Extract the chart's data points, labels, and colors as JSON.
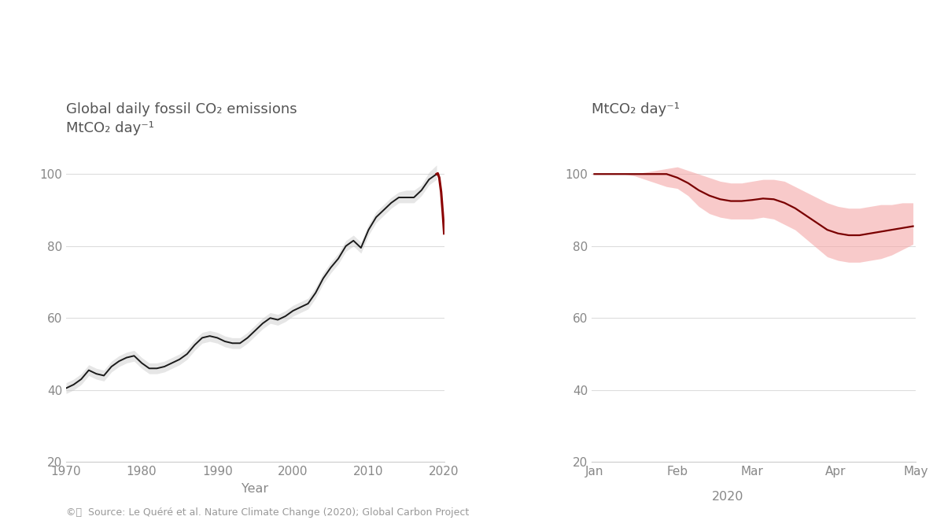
{
  "left_panel": {
    "title_line1": "Global daily fossil CO₂ emissions",
    "title_line2": "MtCO₂ day⁻¹",
    "xlabel": "Year",
    "ylim": [
      20,
      110
    ],
    "yticks": [
      20,
      40,
      60,
      80,
      100
    ],
    "xlim": [
      1970,
      2020
    ],
    "xticks": [
      1970,
      1980,
      1990,
      2000,
      2010,
      2020
    ],
    "years": [
      1970,
      1971,
      1972,
      1973,
      1974,
      1975,
      1976,
      1977,
      1978,
      1979,
      1980,
      1981,
      1982,
      1983,
      1984,
      1985,
      1986,
      1987,
      1988,
      1989,
      1990,
      1991,
      1992,
      1993,
      1994,
      1995,
      1996,
      1997,
      1998,
      1999,
      2000,
      2001,
      2002,
      2003,
      2004,
      2005,
      2006,
      2007,
      2008,
      2009,
      2010,
      2011,
      2012,
      2013,
      2014,
      2015,
      2016,
      2017,
      2018,
      2019
    ],
    "values": [
      40.5,
      41.5,
      43.0,
      45.5,
      44.5,
      44.0,
      46.5,
      48.0,
      49.0,
      49.5,
      47.5,
      46.0,
      46.0,
      46.5,
      47.5,
      48.5,
      50.0,
      52.5,
      54.5,
      55.0,
      54.5,
      53.5,
      53.0,
      53.0,
      54.5,
      56.5,
      58.5,
      60.0,
      59.5,
      60.5,
      62.0,
      63.0,
      64.0,
      67.0,
      71.0,
      74.0,
      76.5,
      80.0,
      81.5,
      79.5,
      84.5,
      88.0,
      90.0,
      92.0,
      93.5,
      93.5,
      93.5,
      95.5,
      98.5,
      100.0
    ],
    "uncertainty_upper": [
      42.0,
      43.0,
      44.5,
      47.0,
      46.0,
      45.5,
      48.0,
      49.5,
      50.5,
      51.0,
      49.0,
      47.5,
      47.5,
      48.0,
      49.0,
      50.0,
      51.5,
      54.0,
      56.0,
      56.5,
      56.0,
      55.0,
      54.5,
      54.5,
      56.0,
      58.0,
      60.0,
      61.5,
      61.0,
      62.0,
      63.5,
      64.5,
      65.5,
      68.5,
      72.5,
      75.5,
      78.0,
      81.5,
      83.0,
      81.0,
      86.0,
      89.5,
      91.5,
      93.5,
      95.0,
      95.5,
      95.5,
      97.0,
      100.5,
      102.5
    ],
    "uncertainty_lower": [
      39.0,
      40.0,
      41.5,
      44.0,
      43.0,
      42.5,
      45.0,
      46.5,
      47.5,
      48.0,
      46.0,
      44.5,
      44.5,
      45.0,
      46.0,
      47.0,
      48.5,
      51.0,
      53.0,
      53.5,
      53.0,
      52.0,
      51.5,
      51.5,
      53.0,
      55.0,
      57.0,
      58.5,
      58.0,
      59.0,
      60.5,
      61.5,
      62.5,
      65.5,
      69.5,
      72.5,
      75.0,
      78.5,
      80.0,
      78.0,
      83.0,
      86.5,
      88.5,
      90.5,
      92.0,
      92.0,
      92.0,
      94.0,
      97.0,
      98.5
    ],
    "drop_x": [
      2019.0,
      2019.15,
      2019.35,
      2019.6,
      2019.82,
      2020.0
    ],
    "drop_y": [
      100.0,
      100.2,
      99.0,
      95.0,
      89.0,
      83.5
    ],
    "line_color": "#1a1a1a",
    "band_color": "#c8c8c8",
    "band_alpha": 0.45,
    "drop_color": "#8b0000"
  },
  "right_panel": {
    "title": "MtCO₂ day⁻¹",
    "ylim": [
      20,
      110
    ],
    "yticks": [
      20,
      40,
      60,
      80,
      100
    ],
    "xlim": [
      0,
      121
    ],
    "month_labels": [
      "Jan",
      "Feb",
      "Mar",
      "Apr",
      "May"
    ],
    "month_positions": [
      1,
      32,
      60,
      91,
      121
    ],
    "x_days": [
      1,
      4,
      8,
      12,
      16,
      20,
      24,
      28,
      32,
      36,
      40,
      44,
      48,
      52,
      56,
      60,
      64,
      68,
      72,
      76,
      80,
      84,
      88,
      92,
      96,
      100,
      104,
      108,
      112,
      116,
      120
    ],
    "central": [
      100.0,
      100.0,
      100.0,
      100.0,
      100.0,
      100.0,
      100.0,
      100.0,
      99.0,
      97.5,
      95.5,
      94.0,
      93.0,
      92.5,
      92.5,
      92.8,
      93.2,
      93.0,
      92.0,
      90.5,
      88.5,
      86.5,
      84.5,
      83.5,
      83.0,
      83.0,
      83.5,
      84.0,
      84.5,
      85.0,
      85.5
    ],
    "upper": [
      100.0,
      100.0,
      100.0,
      100.0,
      100.0,
      100.5,
      101.0,
      101.5,
      102.0,
      101.0,
      100.0,
      99.0,
      98.0,
      97.5,
      97.5,
      98.0,
      98.5,
      98.5,
      98.0,
      96.5,
      95.0,
      93.5,
      92.0,
      91.0,
      90.5,
      90.5,
      91.0,
      91.5,
      91.5,
      92.0,
      92.0
    ],
    "lower": [
      100.0,
      100.0,
      100.0,
      100.0,
      99.5,
      98.5,
      97.5,
      96.5,
      96.0,
      94.0,
      91.0,
      89.0,
      88.0,
      87.5,
      87.5,
      87.5,
      88.0,
      87.5,
      86.0,
      84.5,
      82.0,
      79.5,
      77.0,
      76.0,
      75.5,
      75.5,
      76.0,
      76.5,
      77.5,
      79.0,
      80.5
    ],
    "line_color": "#7a0000",
    "band_color": "#f4a0a0",
    "band_alpha": 0.55,
    "xlabel_2020": "2020"
  },
  "bg_color": "#ffffff",
  "title_color": "#555555",
  "tick_color": "#888888",
  "grid_color": "#dddddd",
  "spine_color": "#cccccc",
  "source_text": "©ⓘ  Source: Le Quéré et al. Nature Climate Change (2020); Global Carbon Project"
}
